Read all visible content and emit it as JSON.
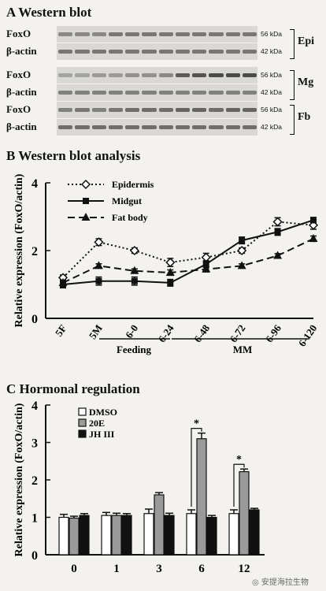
{
  "panelA": {
    "title": "A Western blot",
    "groups": [
      {
        "tissue": "Epi",
        "rows": [
          {
            "label": "FoxO",
            "kda": "56 kDa",
            "int": [
              0.45,
              0.45,
              0.45,
              0.55,
              0.55,
              0.55,
              0.55,
              0.55,
              0.55,
              0.55,
              0.55,
              0.55
            ]
          },
          {
            "label": "β-actin",
            "kda": "42 kDa",
            "int": [
              0.55,
              0.55,
              0.55,
              0.55,
              0.55,
              0.55,
              0.55,
              0.55,
              0.55,
              0.55,
              0.55,
              0.55
            ]
          }
        ]
      },
      {
        "tissue": "Mg",
        "rows": [
          {
            "label": "FoxO",
            "kda": "56 kDa",
            "int": [
              0.3,
              0.3,
              0.35,
              0.35,
              0.4,
              0.4,
              0.45,
              0.7,
              0.75,
              0.8,
              0.8,
              0.8
            ]
          },
          {
            "label": "β-actin",
            "kda": "42 kDa",
            "int": [
              0.5,
              0.5,
              0.5,
              0.5,
              0.5,
              0.5,
              0.5,
              0.5,
              0.5,
              0.5,
              0.5,
              0.5
            ]
          }
        ]
      },
      {
        "tissue": "Fb",
        "rows": [
          {
            "label": "FoxO",
            "kda": "56 kDa",
            "int": [
              0.5,
              0.55,
              0.5,
              0.55,
              0.6,
              0.6,
              0.6,
              0.65,
              0.65,
              0.6,
              0.65,
              0.65
            ]
          },
          {
            "label": "β-actin",
            "kda": "42 kDa",
            "int": [
              0.6,
              0.6,
              0.6,
              0.6,
              0.6,
              0.6,
              0.6,
              0.6,
              0.6,
              0.6,
              0.6,
              0.6
            ]
          }
        ]
      }
    ]
  },
  "panelB": {
    "title": "B Western blot analysis",
    "stage_groups": [
      "Feeding",
      "MM"
    ]
  },
  "panelC": {
    "title": "C Hormonal regulation"
  },
  "watermark": "安提海拉生物",
  "chart_data": [
    {
      "type": "line",
      "ylabel": "Relative expression (FoxO/actin)",
      "categories": [
        "5F",
        "5M",
        "6-0",
        "6-24",
        "6-48",
        "6-72",
        "6-96",
        "6-120"
      ],
      "ylim": [
        0,
        4
      ],
      "yticks": [
        0,
        2,
        4
      ],
      "legend": "top-left",
      "series": [
        {
          "name": "Epidermis",
          "style": "dotted",
          "marker": "diamond-open",
          "values": [
            1.2,
            2.25,
            2.0,
            1.65,
            1.8,
            2.0,
            2.85,
            2.75
          ],
          "errors": [
            0.08,
            0.1,
            0.08,
            0.12,
            0.12,
            0.08,
            0.12,
            0.12
          ]
        },
        {
          "name": "Midgut",
          "style": "solid",
          "marker": "square-filled",
          "values": [
            1.0,
            1.1,
            1.1,
            1.05,
            1.6,
            2.3,
            2.55,
            2.9
          ],
          "errors": [
            0.1,
            0.12,
            0.12,
            0.1,
            0.1,
            0.1,
            0.1,
            0.08
          ]
        },
        {
          "name": "Fat body",
          "style": "dashed",
          "marker": "triangle-filled",
          "values": [
            1.05,
            1.55,
            1.4,
            1.35,
            1.45,
            1.55,
            1.85,
            2.35
          ],
          "errors": [
            0.08,
            0.06,
            0.06,
            0.08,
            0.08,
            0.06,
            0.06,
            0.08
          ]
        }
      ]
    },
    {
      "type": "bar",
      "ylabel": "Relative expression (FoxO/actin)",
      "categories": [
        "0",
        "1",
        "3",
        "6",
        "12"
      ],
      "ylim": [
        0,
        4
      ],
      "yticks": [
        0,
        1,
        2,
        3,
        4
      ],
      "legend": "top-left",
      "series": [
        {
          "name": "DMSO",
          "color": "#ffffff",
          "values": [
            1.0,
            1.05,
            1.1,
            1.1,
            1.1
          ],
          "errors": [
            0.08,
            0.08,
            0.12,
            0.1,
            0.1
          ]
        },
        {
          "name": "20E",
          "color": "#9a9a9a",
          "values": [
            0.98,
            1.05,
            1.6,
            3.1,
            2.22
          ],
          "errors": [
            0.05,
            0.06,
            0.06,
            0.15,
            0.07
          ]
        },
        {
          "name": "JH III",
          "color": "#111111",
          "values": [
            1.05,
            1.05,
            1.05,
            1.0,
            1.2
          ],
          "errors": [
            0.05,
            0.05,
            0.06,
            0.05,
            0.04
          ]
        }
      ],
      "significance": [
        {
          "category": "6",
          "label": "*"
        },
        {
          "category": "12",
          "label": "*"
        }
      ]
    }
  ]
}
